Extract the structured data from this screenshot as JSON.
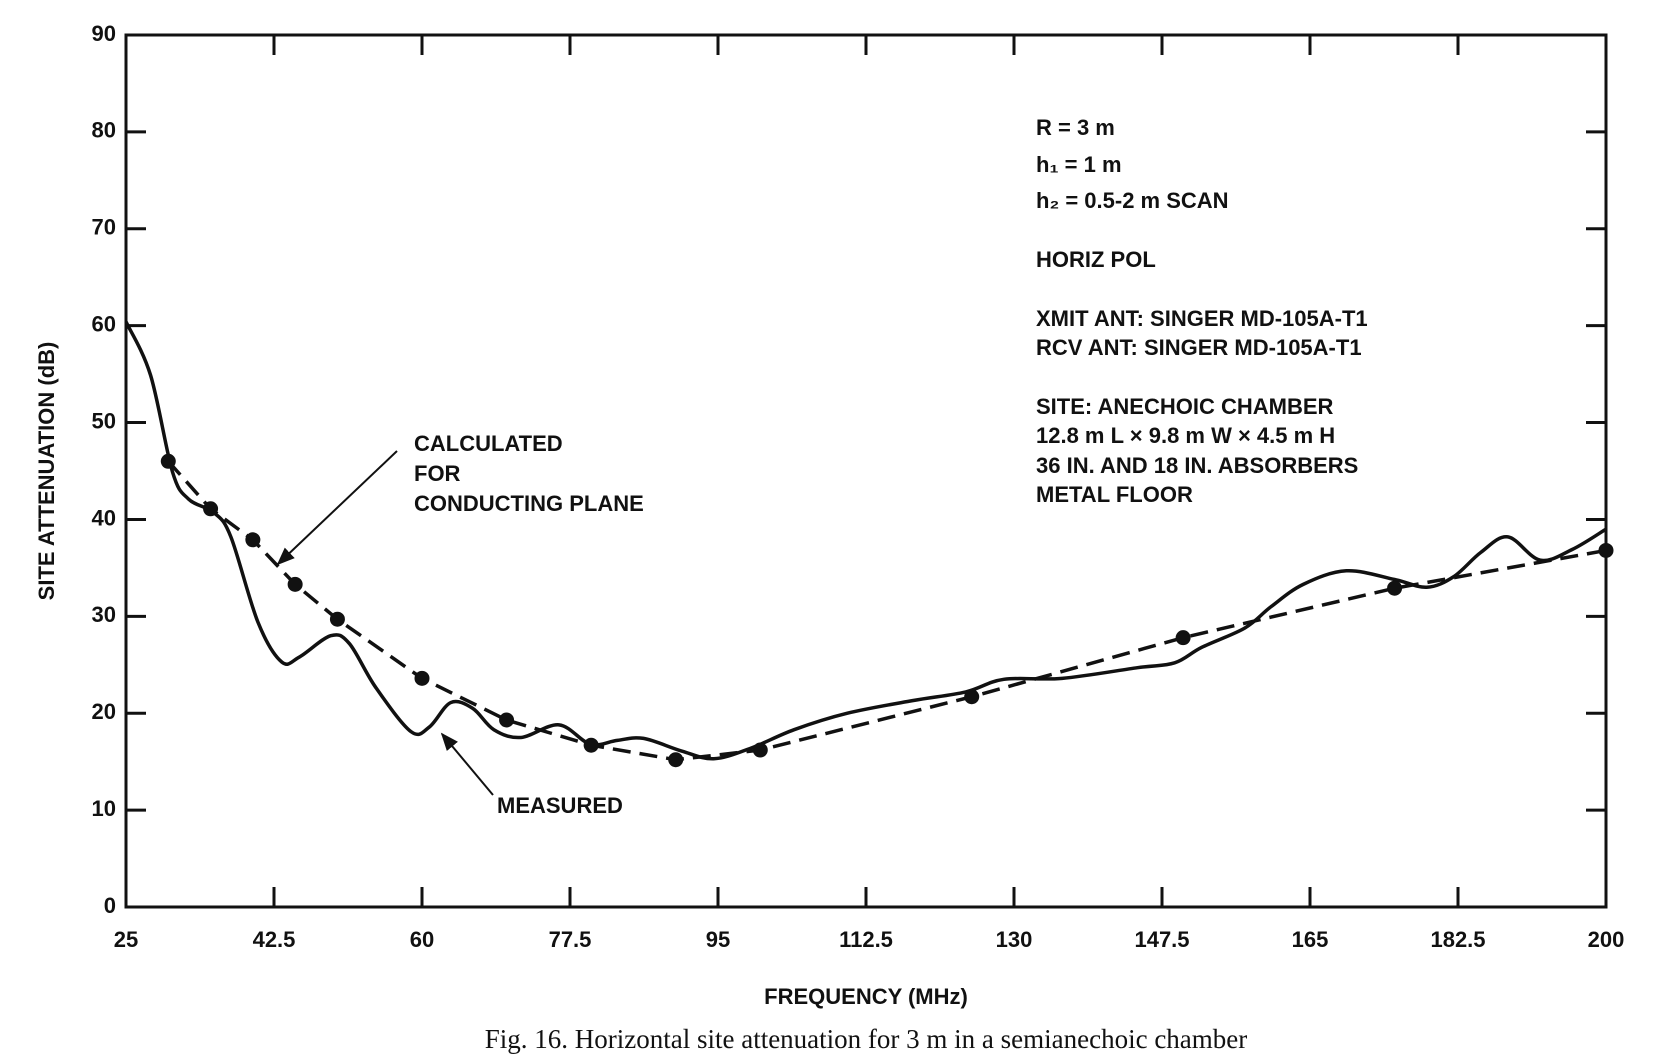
{
  "chart_data": {
    "type": "line",
    "xlabel": "FREQUENCY (MHz)",
    "ylabel": "SITE ATTENUATION (dB)",
    "caption": "Fig. 16.   Horizontal site attenuation for 3 m in a semianechoic chamber",
    "xlim": [
      25,
      200
    ],
    "ylim": [
      0,
      90
    ],
    "xticks": [
      25,
      42.5,
      60,
      77.5,
      95,
      112.5,
      130,
      147.5,
      165,
      182.5,
      200
    ],
    "yticks": [
      0,
      10,
      20,
      30,
      40,
      50,
      60,
      70,
      80,
      90
    ],
    "grid": false,
    "series": [
      {
        "color": "#111111",
        "style": "solid",
        "x": [
          25,
          27.9,
          30.5,
          32.4,
          35.4,
          37.4,
          40.6,
          43.4,
          45.5,
          49.2,
          51.4,
          54.5,
          58.7,
          60.9,
          63.4,
          66,
          68.5,
          71.7,
          76.2,
          79.9,
          83.1,
          86.2,
          90.7,
          94.5,
          98.9,
          104,
          110.3,
          118,
          124.3,
          128.8,
          135.7,
          144.6,
          149,
          152.2,
          157.3,
          160.4,
          164.2,
          169.3,
          175,
          178.8,
          182,
          185.2,
          188.4,
          192.2,
          196,
          200
        ],
        "values": [
          60.4,
          54.9,
          44.9,
          42.1,
          40.7,
          38.2,
          29.4,
          25.3,
          25.8,
          28.0,
          27.2,
          22.7,
          18.1,
          18.6,
          21.1,
          20.5,
          18.3,
          17.5,
          18.8,
          16.8,
          17.2,
          17.4,
          16.1,
          15.3,
          16.4,
          18.3,
          20.0,
          21.3,
          22.2,
          23.5,
          23.6,
          24.7,
          25.2,
          26.8,
          28.8,
          31.0,
          33.3,
          34.7,
          33.8,
          33.0,
          34.1,
          36.6,
          38.2,
          35.8,
          36.9,
          39.0
        ]
      },
      {
        "color": "#111111",
        "style": "dashed",
        "markers": true,
        "x": [
          30,
          35,
          40,
          45,
          50,
          60,
          70,
          80,
          90,
          100,
          125,
          150,
          175,
          200
        ],
        "values": [
          46,
          41.1,
          37.9,
          33.3,
          29.7,
          23.6,
          19.3,
          16.7,
          15.2,
          16.2,
          21.7,
          27.8,
          32.9,
          36.8
        ]
      }
    ],
    "notes": [
      "R = 3 m",
      "h₁ = 1 m",
      "h₂ = 0.5-2 m SCAN",
      "HORIZ POL",
      "XMIT ANT: SINGER MD-105A-T1",
      "RCV ANT: SINGER MD-105A-T1",
      "SITE: ANECHOIC CHAMBER",
      "12.8 m L × 9.8 m W × 4.5 m H",
      "36 IN. AND 18 IN. ABSORBERS",
      "METAL FLOOR"
    ],
    "calculated_label": [
      "CALCULATED",
      "FOR",
      "CONDUCTING PLANE"
    ],
    "measured_label": "MEASURED"
  }
}
